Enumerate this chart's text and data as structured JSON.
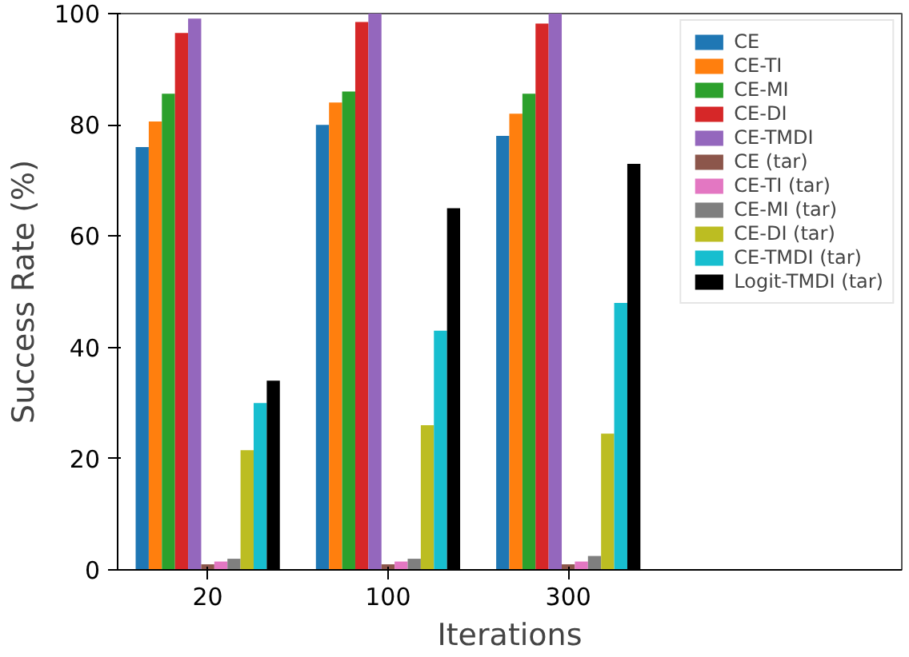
{
  "chart_data": {
    "type": "bar",
    "xlabel": "Iterations",
    "ylabel": "Success Rate (%)",
    "categories": [
      "20",
      "100",
      "300"
    ],
    "series": [
      {
        "name": "CE",
        "color": "#1f77b4",
        "values": [
          76,
          80,
          78
        ]
      },
      {
        "name": "CE-TI",
        "color": "#ff7f0e",
        "values": [
          80.6,
          84,
          82
        ]
      },
      {
        "name": "CE-MI",
        "color": "#2ca02c",
        "values": [
          85.6,
          86,
          85.6
        ]
      },
      {
        "name": "CE-DI",
        "color": "#d62728",
        "values": [
          96.5,
          98.5,
          98.2
        ]
      },
      {
        "name": "CE-TMDI",
        "color": "#9467bd",
        "values": [
          99.1,
          100,
          100
        ]
      },
      {
        "name": "CE (tar)",
        "color": "#8c564b",
        "values": [
          1,
          1,
          1
        ]
      },
      {
        "name": "CE-TI (tar)",
        "color": "#e377c2",
        "values": [
          1.5,
          1.5,
          1.5
        ]
      },
      {
        "name": "CE-MI (tar)",
        "color": "#7f7f7f",
        "values": [
          2,
          2,
          2.5
        ]
      },
      {
        "name": "CE-DI (tar)",
        "color": "#bcbd22",
        "values": [
          21.5,
          26,
          24.5
        ]
      },
      {
        "name": "CE-TMDI (tar)",
        "color": "#17becf",
        "values": [
          30,
          43,
          48
        ]
      },
      {
        "name": "Logit-TMDI (tar)",
        "color": "#000000",
        "values": [
          34,
          65,
          73
        ]
      }
    ],
    "ylim": [
      0,
      100
    ],
    "yticks": [
      0,
      20,
      40,
      60,
      80,
      100
    ],
    "grid": false,
    "legend": "top right"
  }
}
